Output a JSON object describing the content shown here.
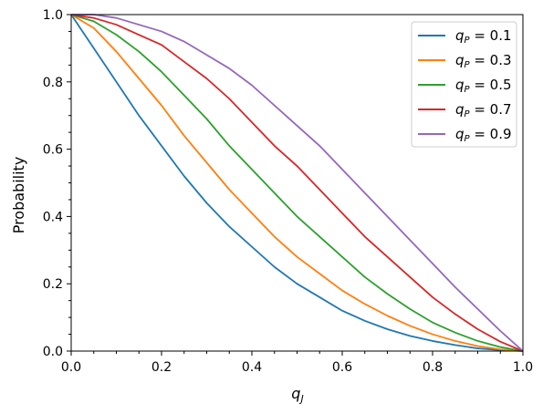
{
  "chart_data": {
    "type": "line",
    "xlabel": "q_J",
    "ylabel": "Probability",
    "xlim": [
      0,
      1
    ],
    "ylim": [
      0,
      1
    ],
    "grid": false,
    "legend_position": "top-right",
    "xticks": [
      "0.0",
      "0.2",
      "0.4",
      "0.6",
      "0.8",
      "1.0"
    ],
    "yticks": [
      "0.0",
      "0.2",
      "0.4",
      "0.6",
      "0.8",
      "1.0"
    ],
    "x": [
      0,
      0.05,
      0.1,
      0.15,
      0.2,
      0.25,
      0.3,
      0.35,
      0.4,
      0.45,
      0.5,
      0.55,
      0.6,
      0.65,
      0.7,
      0.75,
      0.8,
      0.85,
      0.9,
      0.95,
      1.0
    ],
    "series": [
      {
        "name": "0.1",
        "color": "#1f77b4",
        "values": [
          1.0,
          0.9,
          0.8,
          0.7,
          0.61,
          0.52,
          0.44,
          0.37,
          0.31,
          0.25,
          0.2,
          0.16,
          0.12,
          0.09,
          0.065,
          0.045,
          0.03,
          0.018,
          0.008,
          0.003,
          0.0
        ]
      },
      {
        "name": "0.3",
        "color": "#ff7f0e",
        "values": [
          1.0,
          0.96,
          0.89,
          0.81,
          0.73,
          0.64,
          0.56,
          0.48,
          0.41,
          0.34,
          0.28,
          0.23,
          0.18,
          0.14,
          0.105,
          0.075,
          0.05,
          0.03,
          0.015,
          0.005,
          0.0
        ]
      },
      {
        "name": "0.5",
        "color": "#2ca02c",
        "values": [
          1.0,
          0.98,
          0.94,
          0.89,
          0.83,
          0.76,
          0.69,
          0.61,
          0.54,
          0.47,
          0.4,
          0.34,
          0.28,
          0.22,
          0.17,
          0.125,
          0.085,
          0.055,
          0.03,
          0.012,
          0.0
        ]
      },
      {
        "name": "0.7",
        "color": "#d62728",
        "values": [
          1.0,
          0.99,
          0.97,
          0.94,
          0.91,
          0.86,
          0.81,
          0.75,
          0.68,
          0.61,
          0.55,
          0.48,
          0.41,
          0.34,
          0.28,
          0.22,
          0.16,
          0.11,
          0.065,
          0.028,
          0.0
        ]
      },
      {
        "name": "0.9",
        "color": "#9467bd",
        "values": [
          1.0,
          1.0,
          0.99,
          0.97,
          0.95,
          0.92,
          0.88,
          0.84,
          0.79,
          0.73,
          0.67,
          0.61,
          0.54,
          0.47,
          0.4,
          0.33,
          0.26,
          0.19,
          0.125,
          0.06,
          0.0
        ]
      }
    ]
  }
}
